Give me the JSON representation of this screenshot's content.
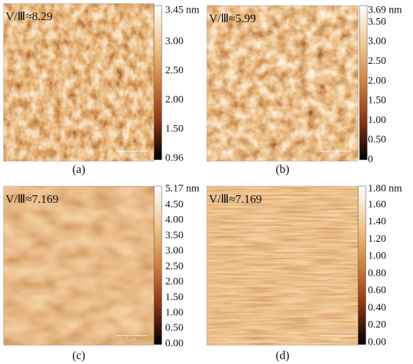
{
  "panels": [
    {
      "label": "(a)",
      "annotation": "V/Ⅲ≈8.29",
      "scale_max": "3.45 nm",
      "ticks": [
        "3.00",
        "2.50",
        "2.00",
        "1.50",
        "0.96"
      ],
      "scale_bar": "5 μm"
    },
    {
      "label": "(b)",
      "annotation": "V/Ⅲ≈5.99",
      "scale_max": "3.69 nm",
      "ticks": [
        "3.50",
        "3.00",
        "2.50",
        "2.00",
        "1.50",
        "1.00",
        "0.50",
        "0"
      ],
      "scale_bar": "5 μm"
    },
    {
      "label": "(c)",
      "annotation": "V/Ⅲ≈7.169",
      "scale_max": "5.17 nm",
      "ticks": [
        "4.50",
        "4.00",
        "3.50",
        "3.00",
        "2.50",
        "2.00",
        "1.50",
        "1.00",
        "0.50",
        "0.00"
      ],
      "scale_bar": "5 μm"
    },
    {
      "label": "(d)",
      "annotation": "V/Ⅲ≈7.169",
      "scale_max": "1.80 nm",
      "ticks": [
        "1.60",
        "1.40",
        "1.20",
        "1.00",
        "0.80",
        "0.60",
        "0.40",
        "0.20",
        "0.00"
      ],
      "scale_bar": "2 μm"
    }
  ]
}
